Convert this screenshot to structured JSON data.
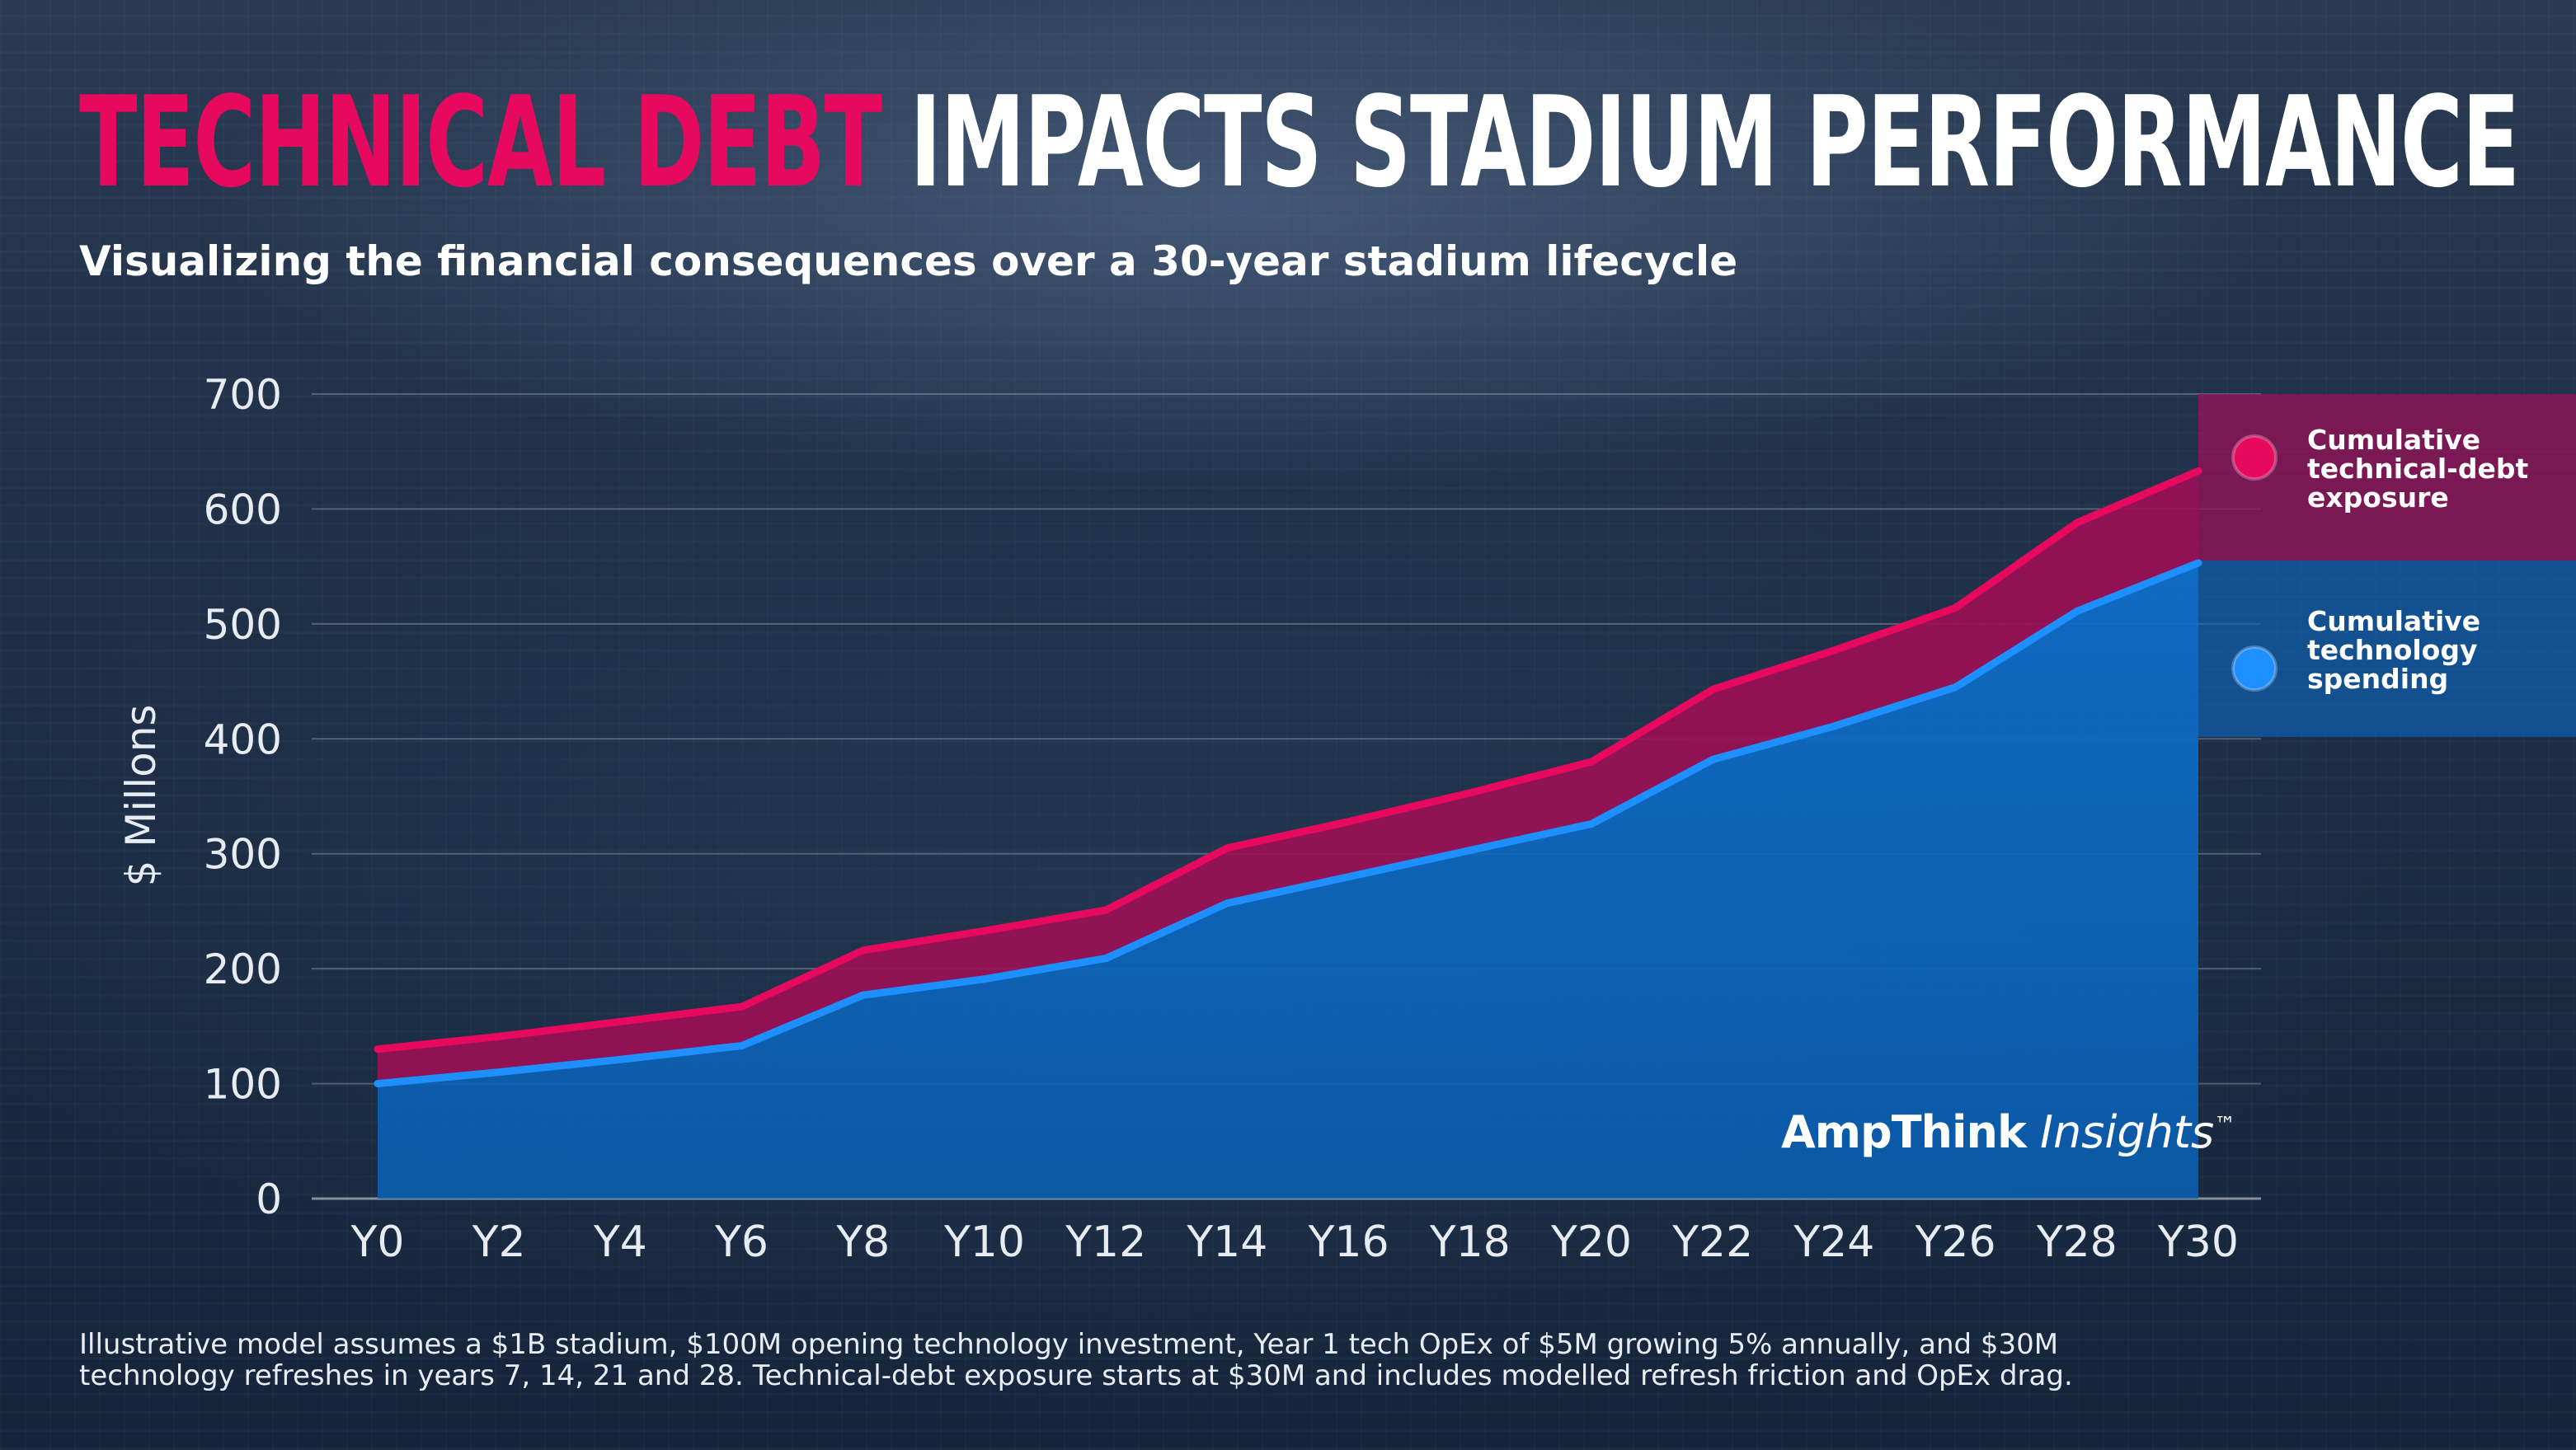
{
  "title": {
    "accent": "TECHNICAL DEBT",
    "rest": "IMPACTS STADIUM PERFORMANCE"
  },
  "subtitle": "Visualizing the financial consequences over a 30-year stadium lifecycle",
  "logo": {
    "brand": "AmpThink",
    "product": "Insights",
    "mark": "™"
  },
  "footnote": {
    "line1": "Illustrative model assumes a $1B stadium, $100M opening technology investment, Year 1 tech OpEx of $5M growing 5% annually, and $30M",
    "line2": "technology refreshes in years 7, 14, 21 and 28. Technical-debt exposure starts at $30M and includes modelled refresh friction and OpEx drag."
  },
  "colors": {
    "accent": "#e6095e",
    "debt_fill": "#9c0f57",
    "spend_line": "#1e8fff",
    "spend_fill": "#0b66bd",
    "background": "#1a2a40"
  },
  "chart_data": {
    "type": "area",
    "ylabel": "$ Millons",
    "xlabel": "",
    "ylim": [
      0,
      700
    ],
    "yticks": [
      0,
      100,
      200,
      300,
      400,
      500,
      600,
      700
    ],
    "x_tick_labels": [
      "Y0",
      "Y2",
      "Y4",
      "Y6",
      "Y8",
      "Y10",
      "Y12",
      "Y14",
      "Y16",
      "Y18",
      "Y20",
      "Y22",
      "Y24",
      "Y26",
      "Y28",
      "Y30"
    ],
    "x": [
      0,
      2,
      4,
      6,
      8,
      10,
      12,
      14,
      16,
      18,
      20,
      22,
      24,
      26,
      28,
      30
    ],
    "grid": true,
    "legend_position": "right",
    "series": [
      {
        "name": "Cumulative technical-debt exposure",
        "color": "#e6095e",
        "values": [
          130,
          141,
          154,
          167,
          216,
          233,
          251,
          305,
          328,
          353,
          380,
          443,
          477,
          514,
          588,
          633
        ]
      },
      {
        "name": "Cumulative technology spending",
        "color": "#1e8fff",
        "values": [
          100,
          110,
          121,
          133,
          177,
          191,
          209,
          257,
          280,
          303,
          326,
          382,
          411,
          445,
          511,
          553
        ]
      }
    ]
  }
}
